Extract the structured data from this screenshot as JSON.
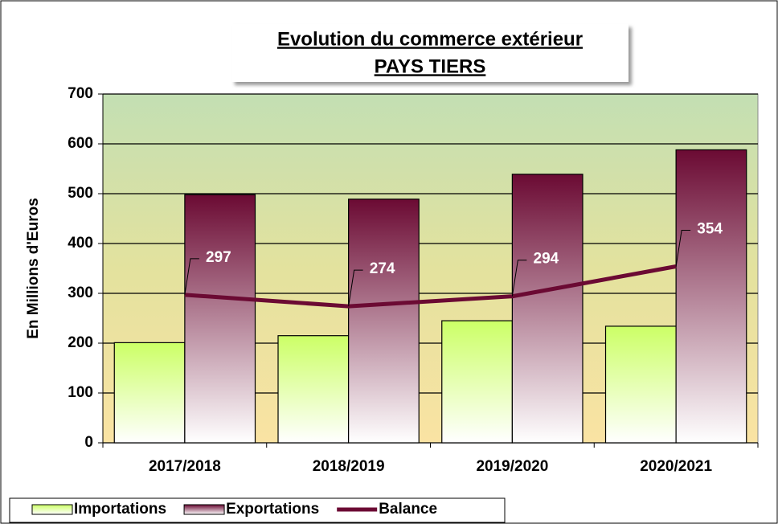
{
  "chart_data": {
    "type": "bar_line",
    "title": "Evolution du commerce extérieur",
    "subtitle": "PAYS TIERS",
    "y_label": "En Millions  d'Euros",
    "categories": [
      "2017/2018",
      "2018/2019",
      "2019/2020",
      "2020/2021"
    ],
    "series": [
      {
        "name": "Importations",
        "type": "bar",
        "color": "#ccff66",
        "values": [
          201,
          215,
          245,
          234
        ]
      },
      {
        "name": "Exportations",
        "type": "bar",
        "color": "#6b0a33",
        "values": [
          498,
          489,
          539,
          588
        ]
      },
      {
        "name": "Balance",
        "type": "line",
        "color": "#6b0a33",
        "values": [
          297,
          274,
          294,
          354
        ]
      }
    ],
    "ylim": [
      0,
      700
    ],
    "yticks": [
      0,
      100,
      200,
      300,
      400,
      500,
      600,
      700
    ],
    "grid": true
  }
}
